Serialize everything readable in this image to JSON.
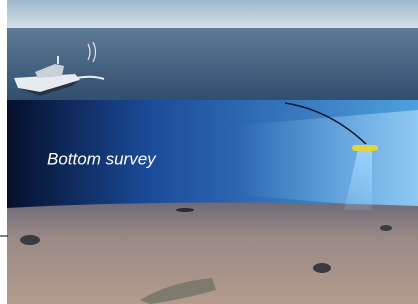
{
  "caption": "Bottom survey"
}
